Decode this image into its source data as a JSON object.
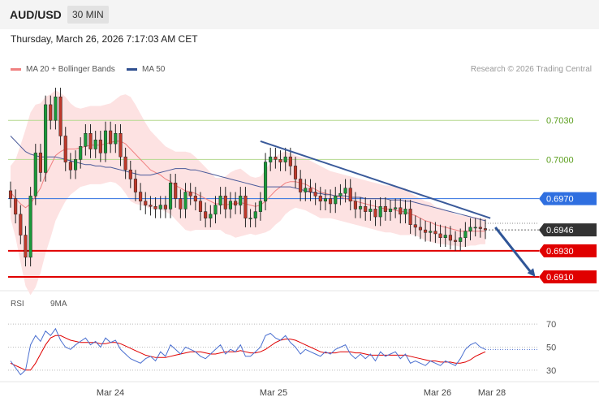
{
  "header": {
    "symbol": "AUD/USD",
    "timeframe": "30 MIN",
    "datetime": "Thursday, March 26, 2026 7:17:03 AM CET",
    "credit": "Research © 2026 Trading Central"
  },
  "legend": {
    "ma20_label": "MA 20 + Bollinger Bands",
    "ma20_color": "#f08080",
    "ma50_label": "MA 50",
    "ma50_color": "#2f4f8f"
  },
  "chart_data": {
    "type": "line",
    "title": "",
    "x_ticks": [
      "Mar 24",
      "Mar 25",
      "Mar 26",
      "Mar 28"
    ],
    "price_panel": {
      "ylim": [
        0.69,
        0.706
      ],
      "series": [
        {
          "name": "Close",
          "kind": "candlestick",
          "values": [
            0.697,
            0.6958,
            0.6942,
            0.6925,
            0.6972,
            0.7005,
            0.699,
            0.7042,
            0.703,
            0.7048,
            0.7018,
            0.6998,
            0.6992,
            0.7,
            0.701,
            0.702,
            0.7008,
            0.7015,
            0.7005,
            0.7022,
            0.7012,
            0.702,
            0.7002,
            0.6992,
            0.6985,
            0.6975,
            0.6968,
            0.6965,
            0.6964,
            0.6962,
            0.6965,
            0.6962,
            0.6982,
            0.697,
            0.6962,
            0.6975,
            0.6972,
            0.6968,
            0.696,
            0.6955,
            0.6958,
            0.6965,
            0.6972,
            0.6962,
            0.6968,
            0.6965,
            0.6972,
            0.6955,
            0.6955,
            0.696,
            0.6968,
            0.6998,
            0.7002,
            0.7,
            0.6998,
            0.7002,
            0.6995,
            0.6985,
            0.6975,
            0.6978,
            0.6975,
            0.6972,
            0.6968,
            0.697,
            0.6966,
            0.6972,
            0.6974,
            0.6978,
            0.6968,
            0.6962,
            0.6964,
            0.696,
            0.6962,
            0.6956,
            0.6964,
            0.696,
            0.6962,
            0.6963,
            0.6958,
            0.6962,
            0.695,
            0.6948,
            0.6946,
            0.6944,
            0.6945,
            0.6943,
            0.694,
            0.6942,
            0.6938,
            0.6937,
            0.694,
            0.6945,
            0.6948,
            0.6948,
            0.6947,
            0.6946
          ]
        },
        {
          "name": "MA 20",
          "kind": "line",
          "values": [
            0.6975,
            0.697,
            0.6966,
            0.6963,
            0.6966,
            0.6972,
            0.6978,
            0.6988,
            0.6995,
            0.7003,
            0.7006,
            0.7008,
            0.7008,
            0.7008,
            0.7009,
            0.701,
            0.7011,
            0.7011,
            0.7011,
            0.7012,
            0.7013,
            0.7014,
            0.7014,
            0.7012,
            0.7008,
            0.7004,
            0.7,
            0.6996,
            0.6992,
            0.699,
            0.6988,
            0.6985,
            0.6983,
            0.698,
            0.6978,
            0.6976,
            0.6975,
            0.6974,
            0.6972,
            0.697,
            0.6968,
            0.6966,
            0.6966,
            0.6965,
            0.6966,
            0.6966,
            0.6967,
            0.6966,
            0.6965,
            0.6964,
            0.6965,
            0.6968,
            0.6972,
            0.6976,
            0.6979,
            0.6982,
            0.6983,
            0.6983,
            0.6982,
            0.6981,
            0.6979,
            0.6977,
            0.6975,
            0.6974,
            0.6973,
            0.6972,
            0.6971,
            0.697,
            0.6969,
            0.6968,
            0.6967,
            0.6966,
            0.6965,
            0.6964,
            0.6963,
            0.6962,
            0.6962,
            0.6961,
            0.696,
            0.696,
            0.6958,
            0.6957,
            0.6955,
            0.6953,
            0.6952,
            0.695,
            0.6949,
            0.6948,
            0.6947,
            0.6946,
            0.6945,
            0.6945,
            0.6945,
            0.6945,
            0.6945,
            0.6945
          ]
        },
        {
          "name": "MA 50",
          "kind": "line",
          "values": [
            0.7018,
            0.7014,
            0.701,
            0.7006,
            0.7004,
            0.7003,
            0.7002,
            0.7002,
            0.7002,
            0.7002,
            0.7001,
            0.7,
            0.6999,
            0.6998,
            0.6997,
            0.6996,
            0.6996,
            0.6995,
            0.6995,
            0.6994,
            0.6994,
            0.6993,
            0.6992,
            0.6991,
            0.699,
            0.6989,
            0.6988,
            0.6988,
            0.6988,
            0.6989,
            0.699,
            0.6991,
            0.6992,
            0.6993,
            0.6993,
            0.6993,
            0.6992,
            0.6992,
            0.6991,
            0.699,
            0.6989,
            0.6988,
            0.6987,
            0.6986,
            0.6985,
            0.6984,
            0.6983,
            0.6982,
            0.6981,
            0.698,
            0.6979,
            0.6979,
            0.6979,
            0.6979,
            0.6979,
            0.6979,
            0.6979,
            0.6978,
            0.6977,
            0.6976,
            0.6975,
            0.6974,
            0.6974,
            0.6973,
            0.6973,
            0.6972,
            0.6972,
            0.6972,
            0.6971,
            0.6971,
            0.6971,
            0.697,
            0.697,
            0.697,
            0.697,
            0.697,
            0.6969,
            0.6969,
            0.6969,
            0.6968,
            0.6968,
            0.6967,
            0.6966,
            0.6965,
            0.6964,
            0.6963,
            0.6962,
            0.6961,
            0.696,
            0.6959,
            0.6958,
            0.6957,
            0.6956,
            0.6955,
            0.6954,
            0.6953
          ]
        }
      ],
      "bollinger_halfwidth": [
        0.002,
        0.003,
        0.0045,
        0.006,
        0.007,
        0.007,
        0.0065,
        0.006,
        0.0055,
        0.005,
        0.0045,
        0.004,
        0.0035,
        0.0032,
        0.003,
        0.003,
        0.003,
        0.003,
        0.003,
        0.003,
        0.003,
        0.0032,
        0.0035,
        0.0038,
        0.004,
        0.0038,
        0.0035,
        0.0032,
        0.003,
        0.0028,
        0.0026,
        0.0025,
        0.0025,
        0.0026,
        0.0028,
        0.003,
        0.003,
        0.0028,
        0.0026,
        0.0024,
        0.0022,
        0.002,
        0.002,
        0.0022,
        0.0024,
        0.0026,
        0.0026,
        0.0024,
        0.0022,
        0.0022,
        0.0022,
        0.0024,
        0.0026,
        0.0026,
        0.0026,
        0.0024,
        0.0022,
        0.002,
        0.002,
        0.002,
        0.002,
        0.002,
        0.002,
        0.0019,
        0.0018,
        0.0018,
        0.0018,
        0.0018,
        0.0018,
        0.0018,
        0.0018,
        0.0018,
        0.0018,
        0.0018,
        0.0018,
        0.0018,
        0.0018,
        0.0018,
        0.0018,
        0.0018,
        0.0016,
        0.0015,
        0.0015,
        0.0015,
        0.0015,
        0.0014,
        0.0014,
        0.0013,
        0.0013,
        0.0012,
        0.0012,
        0.0012,
        0.0011,
        0.0011,
        0.001,
        0.001
      ],
      "levels": [
        {
          "value": 0.703,
          "label": "0.7030",
          "color": "#5a9e1c",
          "style": "line"
        },
        {
          "value": 0.7,
          "label": "0.7000",
          "color": "#5a9e1c",
          "style": "line"
        },
        {
          "value": 0.697,
          "label": "0.6970",
          "color": "#2f6fe0",
          "style": "tag"
        },
        {
          "value": 0.6946,
          "label": "0.6946",
          "color": "#333333",
          "style": "tag"
        },
        {
          "value": 0.693,
          "label": "0.6930",
          "color": "#e00000",
          "style": "tag"
        },
        {
          "value": 0.691,
          "label": "0.6910",
          "color": "#e00000",
          "style": "tag"
        }
      ],
      "trendline": {
        "from": [
          50,
          0.7014
        ],
        "to": [
          96,
          0.6955
        ],
        "color": "#3a5a9a"
      },
      "arrow": {
        "from": [
          97,
          0.6948
        ],
        "to": [
          105,
          0.691
        ],
        "color": "#2f5597"
      }
    },
    "rsi_panel": {
      "ylim": [
        20,
        80
      ],
      "yticks": [
        30,
        50,
        70
      ],
      "series": [
        {
          "name": "RSI",
          "color": "#4a6fd0",
          "values": [
            38,
            32,
            26,
            30,
            52,
            60,
            55,
            64,
            60,
            66,
            56,
            50,
            48,
            52,
            55,
            58,
            52,
            55,
            50,
            58,
            54,
            56,
            48,
            44,
            40,
            38,
            36,
            40,
            42,
            38,
            46,
            42,
            52,
            48,
            44,
            50,
            48,
            46,
            42,
            40,
            44,
            48,
            52,
            44,
            48,
            46,
            52,
            42,
            42,
            46,
            50,
            60,
            62,
            58,
            56,
            60,
            54,
            50,
            44,
            48,
            46,
            44,
            42,
            46,
            44,
            48,
            50,
            52,
            44,
            40,
            44,
            40,
            44,
            38,
            46,
            42,
            44,
            46,
            40,
            44,
            36,
            38,
            36,
            34,
            38,
            36,
            34,
            38,
            36,
            34,
            40,
            48,
            52,
            54,
            50,
            48
          ]
        },
        {
          "name": "9MA",
          "color": "#e00000",
          "values": [
            36,
            34,
            32,
            30,
            30,
            36,
            44,
            52,
            58,
            60,
            60,
            58,
            56,
            55,
            54,
            54,
            54,
            54,
            53,
            53,
            54,
            54,
            53,
            51,
            49,
            47,
            45,
            43,
            42,
            41,
            41,
            41,
            42,
            43,
            44,
            45,
            46,
            46,
            46,
            45,
            44,
            44,
            45,
            46,
            46,
            46,
            47,
            46,
            45,
            45,
            46,
            48,
            51,
            54,
            56,
            57,
            57,
            56,
            54,
            52,
            50,
            48,
            46,
            45,
            45,
            45,
            46,
            46,
            46,
            45,
            45,
            44,
            43,
            43,
            43,
            43,
            43,
            43,
            43,
            43,
            42,
            41,
            40,
            39,
            38,
            38,
            37,
            37,
            37,
            36,
            36,
            37,
            39,
            42,
            44,
            46
          ]
        }
      ]
    }
  }
}
